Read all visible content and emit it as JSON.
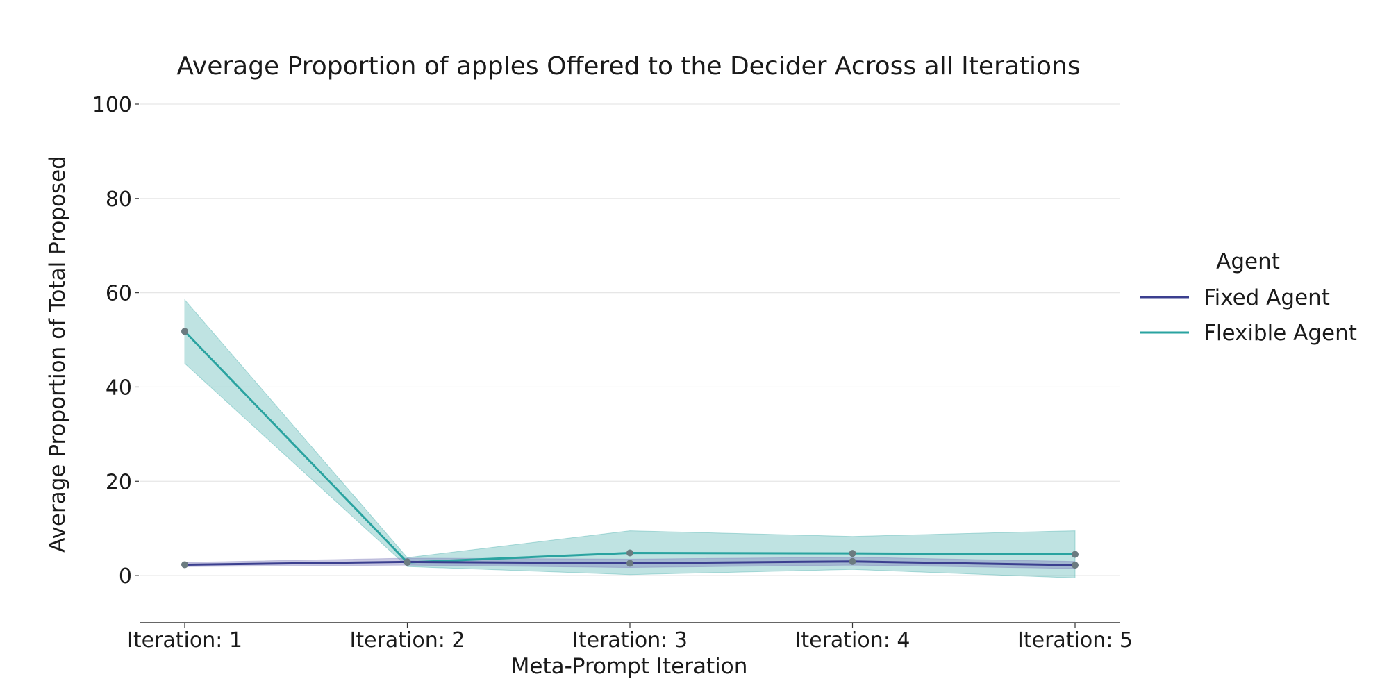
{
  "chart_data": {
    "type": "line",
    "title": "Average Proportion of apples Offered to the Decider Across all Iterations",
    "xlabel": "Meta-Prompt Iteration",
    "ylabel": "Average Proportion of Total Proposed",
    "categories": [
      "Iteration: 1",
      "Iteration: 2",
      "Iteration: 3",
      "Iteration: 4",
      "Iteration: 5"
    ],
    "ylim": [
      -10,
      100
    ],
    "yticks": [
      0,
      20,
      40,
      60,
      80,
      100
    ],
    "grid": "horizontal",
    "legend": {
      "title": "Agent",
      "placement": "right"
    },
    "series": [
      {
        "name": "Fixed Agent",
        "color": "#3b3f8f",
        "band_color": "#7b78b8",
        "values": [
          2.3,
          2.9,
          2.6,
          3.0,
          2.2
        ],
        "lower": [
          1.9,
          2.2,
          1.7,
          2.2,
          1.5
        ],
        "upper": [
          2.8,
          3.7,
          3.5,
          3.9,
          3.0
        ]
      },
      {
        "name": "Flexible Agent",
        "color": "#2aa3a0",
        "band_color": "#2aa3a0",
        "values": [
          51.8,
          2.8,
          4.8,
          4.7,
          4.5
        ],
        "lower": [
          45.0,
          1.9,
          0.2,
          1.3,
          -0.5
        ],
        "upper": [
          58.5,
          3.8,
          9.5,
          8.3,
          9.5
        ]
      }
    ]
  }
}
